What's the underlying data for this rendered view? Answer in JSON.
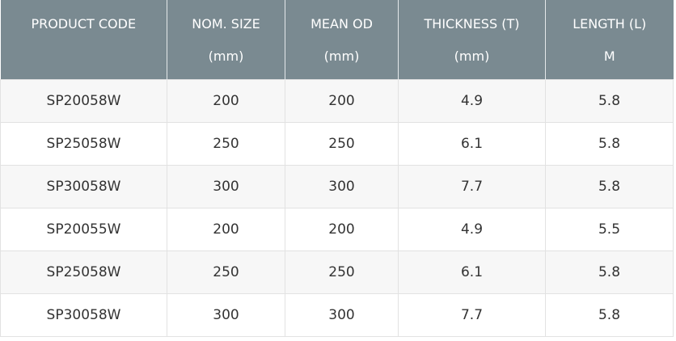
{
  "table": {
    "header": [
      [
        "PRODUCT CODE"
      ],
      [
        "NOM. SIZE",
        "(mm)"
      ],
      [
        "MEAN OD",
        "(mm)"
      ],
      [
        "THICKNESS (T)",
        "(mm)"
      ],
      [
        "LENGTH (L)",
        "M"
      ]
    ],
    "rows": [
      [
        "SP20058W",
        "200",
        "200",
        "4.9",
        "5.8"
      ],
      [
        "SP25058W",
        "250",
        "250",
        "6.1",
        "5.8"
      ],
      [
        "SP30058W",
        "300",
        "300",
        "7.7",
        "5.8"
      ],
      [
        "SP20055W",
        "200",
        "200",
        "4.9",
        "5.5"
      ],
      [
        "SP25058W",
        "250",
        "250",
        "6.1",
        "5.8"
      ],
      [
        "SP30058W",
        "300",
        "300",
        "7.7",
        "5.8"
      ]
    ]
  }
}
